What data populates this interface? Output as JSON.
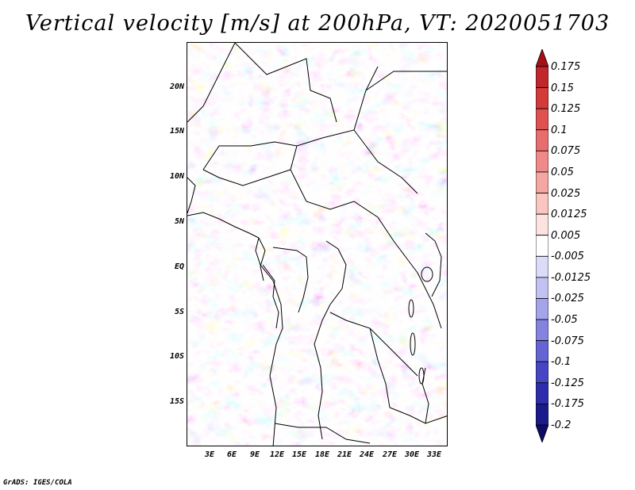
{
  "title": "Vertical velocity [m/s] at 200hPa, VT: 2020051703",
  "footer": "GrADS: IGES/COLA",
  "map": {
    "latitude_labels": [
      "20N",
      "15N",
      "10N",
      "5N",
      "EQ",
      "5S",
      "10S",
      "15S"
    ],
    "longitude_labels": [
      "3E",
      "6E",
      "9E",
      "12E",
      "15E",
      "18E",
      "21E",
      "24E",
      "27E",
      "30E",
      "33E"
    ]
  },
  "colorbar": {
    "labels": [
      "0.175",
      "0.15",
      "0.125",
      "0.1",
      "0.075",
      "0.05",
      "0.025",
      "0.0125",
      "0.005",
      "-0.005",
      "-0.0125",
      "-0.025",
      "-0.05",
      "-0.075",
      "-0.1",
      "-0.125",
      "-0.175",
      "-0.2"
    ],
    "colors": [
      "#a50f15",
      "#c0262b",
      "#d33a3a",
      "#e05252",
      "#e86e6e",
      "#ef8a88",
      "#f4a6a2",
      "#f9c6c2",
      "#fde3e0",
      "#ffffff",
      "#dcdcf8",
      "#c2c2f2",
      "#a4a4ea",
      "#8484e0",
      "#6464d4",
      "#4646c4",
      "#2e2eac",
      "#1a1a8a",
      "#0d0d66"
    ]
  },
  "legend_colors": {
    "positive": "#e05252",
    "negative": "#6464d4",
    "neutral": "#ffffff"
  }
}
